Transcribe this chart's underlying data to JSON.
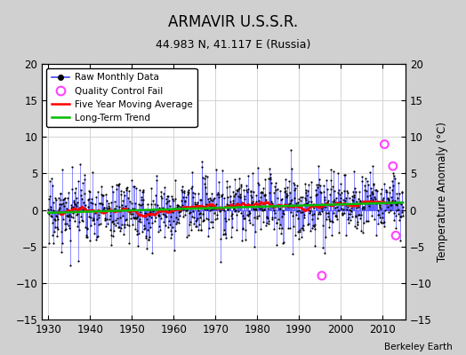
{
  "title": "ARMAVIR U.S.S.R.",
  "subtitle": "44.983 N, 41.117 E (Russia)",
  "credit": "Berkeley Earth",
  "ylabel_right": "Temperature Anomaly (°C)",
  "ylim": [
    -15,
    20
  ],
  "xlim": [
    1928.5,
    2015.5
  ],
  "yticks_left": [
    -15,
    -10,
    -5,
    0,
    5,
    10,
    15,
    20
  ],
  "yticks_right": [
    -15,
    -10,
    -5,
    0,
    5,
    10,
    15,
    20
  ],
  "xticks": [
    1930,
    1940,
    1950,
    1960,
    1970,
    1980,
    1990,
    2000,
    2010
  ],
  "fig_bg_color": "#d0d0d0",
  "plot_bg_color": "#ffffff",
  "line_color": "#4444ff",
  "marker_color": "#000000",
  "ma_color": "#ff0000",
  "trend_color": "#00bb00",
  "qc_color": "#ff44ff",
  "seed": 17,
  "start_year": 1930,
  "end_year": 2014,
  "noise_scale": 2.2,
  "ma_window": 60,
  "qc_points_x": [
    1995.5,
    2010.5,
    2012.5,
    2013.2
  ],
  "qc_points_y": [
    -9.0,
    9.0,
    6.0,
    -3.5
  ],
  "trend_intercept": -0.5,
  "trend_slope": 0.018
}
